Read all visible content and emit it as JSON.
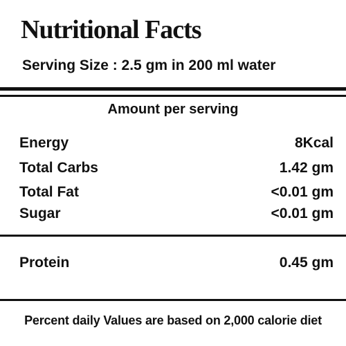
{
  "label": {
    "title": "Nutritional Facts",
    "serving_size": "Serving Size : 2.5 gm in 200 ml water",
    "amount_header": "Amount per serving",
    "nutrients": [
      {
        "name": "Energy",
        "value": "8Kcal"
      },
      {
        "name": "Total Carbs",
        "value": "1.42 gm"
      },
      {
        "name": "Total Fat",
        "value": "<0.01 gm"
      },
      {
        "name": "Sugar",
        "value": "<0.01 gm"
      }
    ],
    "protein": {
      "name": "Protein",
      "value": "0.45 gm"
    },
    "footer": "Percent daily Values are based on 2,000 calorie diet"
  }
}
